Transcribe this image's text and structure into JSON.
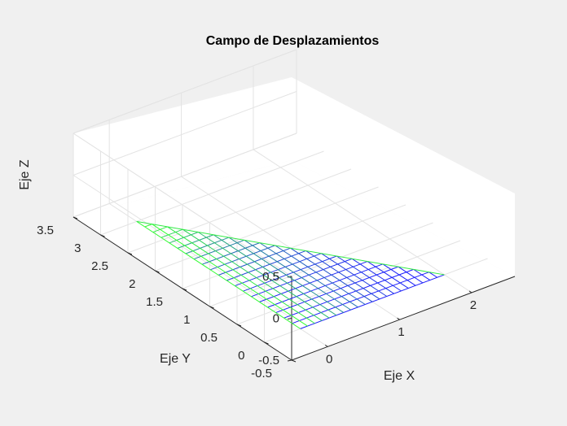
{
  "chart_data": {
    "type": "surface",
    "title": "Campo de Desplazamientos",
    "xlabel": "Eje X",
    "ylabel": "Eje Y",
    "zlabel": "Eje Z",
    "xlim": [
      -0.5,
      2.6
    ],
    "ylim": [
      -0.5,
      3.5
    ],
    "zlim": [
      -0.5,
      0.5
    ],
    "x_ticks": [
      "0",
      "1",
      "2"
    ],
    "y_ticks": [
      "-0.5",
      "0",
      "0.5",
      "1",
      "1.5",
      "2",
      "2.5",
      "3",
      "3.5"
    ],
    "z_ticks": [
      "-0.5",
      "0",
      "0.5"
    ],
    "grid": true,
    "mesh": {
      "shape": "triangular",
      "x_range": [
        0,
        2
      ],
      "y_range": [
        0,
        3
      ],
      "divisions": 20,
      "z": -0.5
    },
    "colors": {
      "low": "#1a1aff",
      "high": "#33ff33",
      "background": "#f0f0f0",
      "pane": "#ffffff",
      "grid": "#e3e3e3",
      "axis": "#262626"
    }
  }
}
